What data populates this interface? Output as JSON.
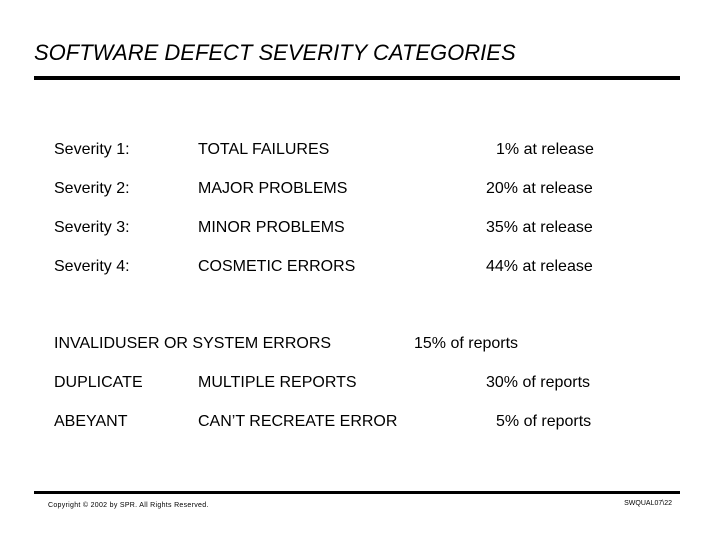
{
  "title": "SOFTWARE DEFECT SEVERITY CATEGORIES",
  "severity_rows": [
    {
      "level": "Severity 1:",
      "category": "TOTAL FAILURES",
      "value": "1% at release"
    },
    {
      "level": "Severity 2:",
      "category": "MAJOR PROBLEMS",
      "value": "20%  at release"
    },
    {
      "level": "Severity 3:",
      "category": "MINOR PROBLEMS",
      "value": "35%  at release"
    },
    {
      "level": "Severity 4:",
      "category": "COSMETIC ERRORS",
      "value": "44%  at release"
    }
  ],
  "invalid_row": {
    "label": "INVALIDUSER OR SYSTEM ERRORS",
    "value": "15% of reports"
  },
  "other_rows": [
    {
      "label": "DUPLICATE",
      "category": "MULTIPLE REPORTS",
      "value": "30% of reports"
    },
    {
      "label": "ABEYANT",
      "category": "CAN’T RECREATE ERROR",
      "value": "5% of reports"
    }
  ],
  "footer": {
    "copyright": "Copyright © 2002 by SPR.  All Rights Reserved.",
    "code": "SWQUAL07\\22"
  }
}
